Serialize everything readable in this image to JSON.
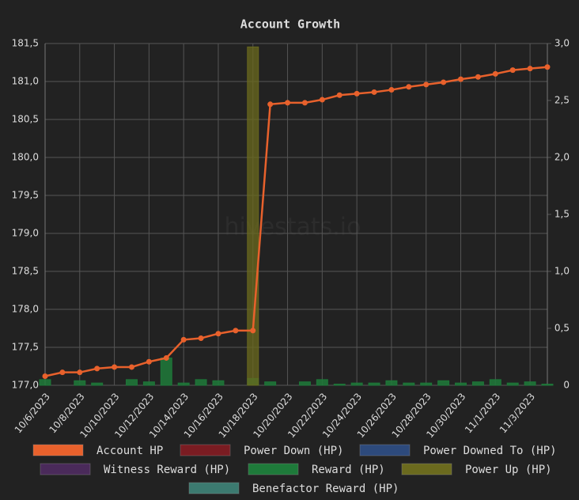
{
  "chart_data": {
    "type": "line",
    "title": "Account Growth",
    "watermark": "hivestats.io",
    "categories": [
      "10/6/2023",
      null,
      "10/8/2023",
      null,
      "10/10/2023",
      null,
      "10/12/2023",
      null,
      "10/14/2023",
      null,
      "10/16/2023",
      null,
      "10/18/2023",
      null,
      "10/20/2023",
      null,
      "10/22/2023",
      null,
      "10/24/2023",
      null,
      "10/26/2023",
      null,
      "10/28/2023",
      null,
      "10/30/2023",
      null,
      "11/1/2023",
      null,
      "11/3/2023",
      null
    ],
    "ylim": [
      177.0,
      181.5
    ],
    "yticks": [
      {
        "value": 177.0,
        "label": "177,0"
      },
      {
        "value": 177.5,
        "label": "177,5"
      },
      {
        "value": 178.0,
        "label": "178,0"
      },
      {
        "value": 178.5,
        "label": "178,5"
      },
      {
        "value": 179.0,
        "label": "179,0"
      },
      {
        "value": 179.5,
        "label": "179,5"
      },
      {
        "value": 180.0,
        "label": "180,0"
      },
      {
        "value": 180.5,
        "label": "180,5"
      },
      {
        "value": 181.0,
        "label": "181,0"
      },
      {
        "value": 181.5,
        "label": "181,5"
      }
    ],
    "y2lim": [
      0,
      3.0
    ],
    "y2ticks": [
      0,
      {
        "value": 0.5,
        "label": "0,5"
      },
      {
        "value": 1.0,
        "label": "1,0"
      },
      {
        "value": 1.5,
        "label": "1,5"
      },
      {
        "value": 2.0,
        "label": "2,0"
      },
      {
        "value": 2.5,
        "label": "2,5"
      },
      {
        "value": 3.0,
        "label": "3,0"
      }
    ],
    "grid": true,
    "series": [
      {
        "name": "Account HP",
        "color": "#e8612c",
        "type": "line",
        "axis": "y",
        "values": [
          177.12,
          177.17,
          177.17,
          177.22,
          177.24,
          177.24,
          177.31,
          177.36,
          177.6,
          177.62,
          177.68,
          177.72,
          177.72,
          180.7,
          180.72,
          180.72,
          180.76,
          180.82,
          180.84,
          180.86,
          180.89,
          180.93,
          180.96,
          180.99,
          181.03,
          181.06,
          181.1,
          181.15,
          181.17,
          181.19
        ]
      },
      {
        "name": "Power Down (HP)",
        "color": "#7a1c22"
      },
      {
        "name": "Power Downed To (HP)",
        "color": "#2d4a7c"
      },
      {
        "name": "Witness Reward (HP)",
        "color": "#4a2a5a"
      },
      {
        "name": "Reward (HP)",
        "color": "#1e7a3a",
        "type": "bar",
        "axis": "y2",
        "values": [
          0.05,
          0,
          0.04,
          0.02,
          0,
          0.05,
          0.03,
          0.24,
          0.02,
          0.05,
          0.04,
          0,
          0.06,
          0.03,
          0,
          0.03,
          0.05,
          0.01,
          0.02,
          0.02,
          0.04,
          0.02,
          0.02,
          0.04,
          0.02,
          0.03,
          0.05,
          0.02,
          0.03,
          0.01
        ]
      },
      {
        "name": "Power Up (HP)",
        "color": "#6b6a1e",
        "type": "bar",
        "axis": "y2",
        "values": [
          0,
          0,
          0,
          0,
          0,
          0,
          0,
          0,
          0,
          0,
          0,
          0,
          2.97,
          0,
          0,
          0,
          0,
          0,
          0,
          0,
          0,
          0,
          0,
          0,
          0,
          0,
          0,
          0,
          0,
          0
        ]
      },
      {
        "name": "Benefactor Reward (HP)",
        "color": "#3c7a70"
      }
    ]
  }
}
